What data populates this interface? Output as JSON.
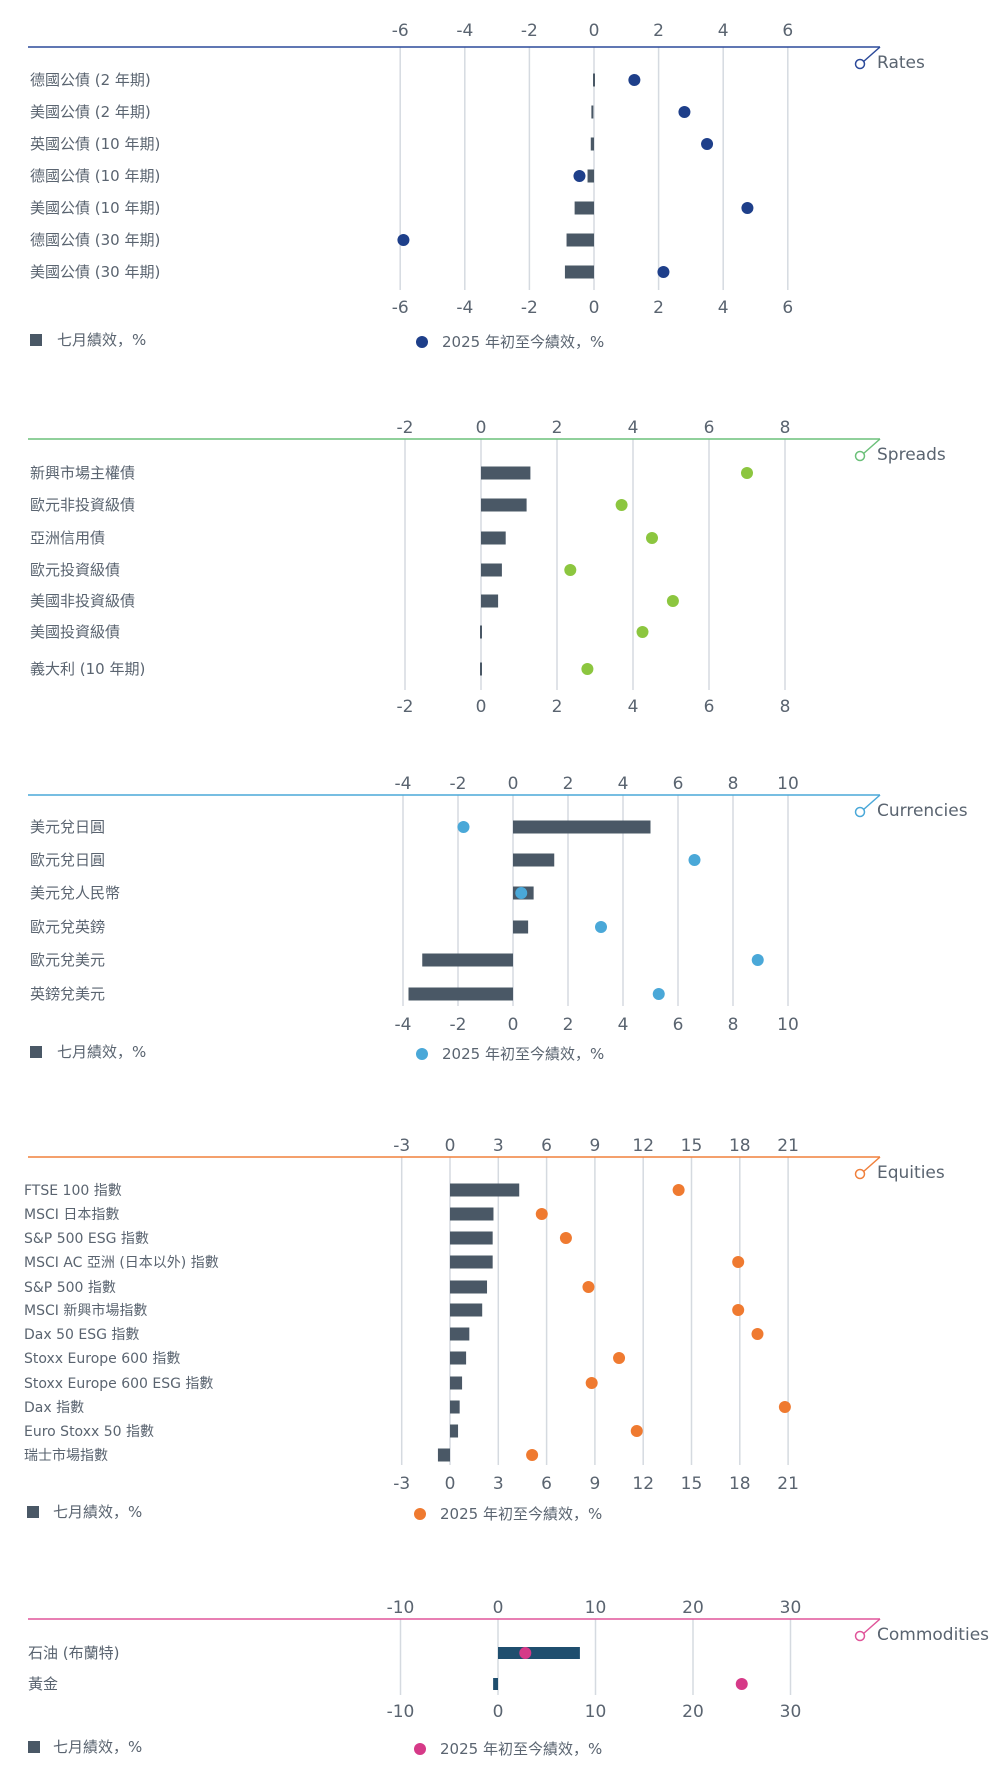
{
  "colors": {
    "bar": "#4a5866",
    "grid": "#d5dae0",
    "text": "#5a6470",
    "commodity_bar": "#1f4e6e"
  },
  "chart_data": [
    {
      "type": "bar",
      "section": "Rates",
      "accent": "#2c4a9a",
      "dot_color": "#1e3f8a",
      "ticks": [
        -6,
        -4,
        -2,
        0,
        2,
        4,
        6
      ],
      "xlim": [
        -6.5,
        6.5
      ],
      "categories": [
        "德國公債 (2 年期)",
        "美國公債 (2 年期)",
        "英國公債 (10 年期)",
        "德國公債 (10 年期)",
        "美國公債 (10 年期)",
        "德國公債 (30 年期)",
        "美國公債 (30 年期)"
      ],
      "series": [
        {
          "name": "七月績效，%",
          "values": [
            0.05,
            -0.05,
            -0.1,
            -0.2,
            -0.6,
            -0.85,
            -0.9
          ]
        },
        {
          "name": "2025 年初至今績效，%",
          "values": [
            1.25,
            2.8,
            3.5,
            -0.45,
            4.75,
            -5.9,
            2.15
          ]
        }
      ],
      "legend": {
        "bar_label": "七月績效，%",
        "dot_label": "2025 年初至今績效，%"
      }
    },
    {
      "type": "bar",
      "section": "Spreads",
      "accent": "#6cc07a",
      "dot_color": "#8cc63f",
      "ticks": [
        -2,
        0,
        2,
        4,
        6,
        8
      ],
      "xlim": [
        -2.6,
        10.3
      ],
      "categories": [
        "新興市場主權債",
        "歐元非投資級債",
        "亞洲信用債",
        "歐元投資級債",
        "美國非投資級債",
        "美國投資級債",
        "義大利 (10 年期)"
      ],
      "series": [
        {
          "name": "bars",
          "values": [
            1.3,
            1.2,
            0.65,
            0.55,
            0.45,
            0.05,
            0.0
          ]
        },
        {
          "name": "dots",
          "values": [
            7.0,
            3.7,
            4.5,
            2.35,
            5.05,
            4.25,
            2.8
          ]
        }
      ]
    },
    {
      "type": "bar",
      "section": "Currencies",
      "accent": "#4aa8d8",
      "dot_color": "#4aa8d8",
      "ticks": [
        -4,
        -2,
        0,
        2,
        4,
        6,
        8,
        10
      ],
      "xlim": [
        -4.5,
        12.8
      ],
      "categories": [
        "美元兌日圓",
        "歐元兌日圓",
        "美元兌人民幣",
        "歐元兌英鎊",
        "歐元兌美元",
        "英鎊兌美元"
      ],
      "series": [
        {
          "name": "七月績效，%",
          "values": [
            5.0,
            1.5,
            0.75,
            0.55,
            -3.3,
            -3.8
          ]
        },
        {
          "name": "2025 年初至今績效，%",
          "values": [
            -1.8,
            6.6,
            0.3,
            3.2,
            8.9,
            5.3
          ]
        }
      ],
      "legend": {
        "bar_label": "七月績效，%",
        "dot_label": "2025 年初至今績效，%"
      }
    },
    {
      "type": "bar",
      "section": "Equities",
      "accent": "#f0803c",
      "dot_color": "#ef7a30",
      "ticks": [
        -3,
        0,
        3,
        6,
        9,
        12,
        15,
        18,
        21
      ],
      "xlim": [
        -3.3,
        26.3
      ],
      "categories": [
        "FTSE 100 指數",
        "MSCI 日本指數",
        "S&P 500 ESG 指數",
        "MSCI AC 亞洲 (日本以外) 指數",
        "S&P 500 指數",
        "MSCI 新興市場指數",
        "Dax 50 ESG 指數",
        "Stoxx Europe 600 指數",
        "Stoxx Europe 600 ESG 指數",
        "Dax 指數",
        "Euro Stoxx 50 指數",
        "瑞士市場指數"
      ],
      "series": [
        {
          "name": "七月績效，%",
          "values": [
            4.3,
            2.7,
            2.65,
            2.65,
            2.3,
            2.0,
            1.2,
            1.0,
            0.75,
            0.6,
            0.5,
            -0.75
          ]
        },
        {
          "name": "2025 年初至今績效，%",
          "values": [
            14.2,
            5.7,
            7.2,
            17.9,
            8.6,
            17.9,
            19.1,
            10.5,
            8.8,
            20.8,
            11.6,
            5.1
          ]
        }
      ],
      "legend": {
        "bar_label": "七月績效，%",
        "dot_label": "2025 年初至今績效，%"
      }
    },
    {
      "type": "bar",
      "section": "Commodities",
      "accent": "#e0559a",
      "dot_color": "#d63a88",
      "ticks": [
        -10,
        0,
        10,
        20,
        30
      ],
      "xlim": [
        -10.6,
        38.8
      ],
      "categories": [
        "石油 (布蘭特)",
        "黃金"
      ],
      "series": [
        {
          "name": "七月績效，%",
          "values": [
            8.4,
            -0.5
          ]
        },
        {
          "name": "2025 年初至今績效，%",
          "values": [
            2.8,
            25.0
          ]
        }
      ],
      "legend": {
        "bar_label": "七月績效，%",
        "dot_label": "2025 年初至今績效，%"
      }
    }
  ]
}
